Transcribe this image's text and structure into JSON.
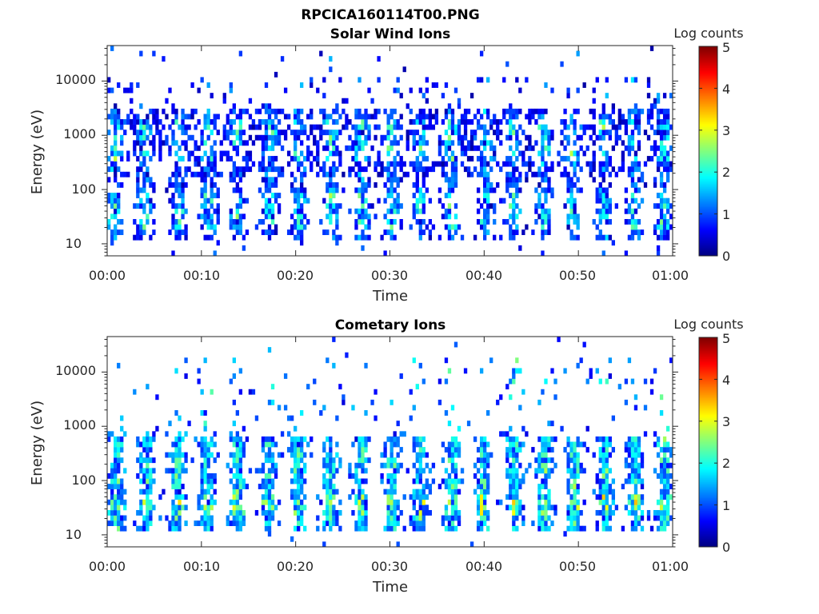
{
  "figure": {
    "title": "RPCICA160114T00.PNG"
  },
  "colorbar": {
    "label": "Log counts",
    "ticks": [
      "0",
      "1",
      "2",
      "3",
      "4",
      "5"
    ],
    "range": [
      0,
      5
    ],
    "colormap": "jet"
  },
  "chart_data": [
    {
      "type": "heatmap",
      "title": "Solar Wind Ions",
      "xlabel": "Time",
      "ylabel": "Energy (eV)",
      "xticks": [
        "00:00",
        "00:10",
        "00:20",
        "00:30",
        "00:40",
        "00:50",
        "01:00"
      ],
      "xlim_minutes": [
        0,
        60
      ],
      "yticks": [
        "10",
        "100",
        "1000",
        "10000"
      ],
      "ylim": [
        6,
        45000
      ],
      "yscale": "log",
      "zlabel": "Log counts",
      "zlim": [
        0,
        5
      ],
      "grid": false,
      "bursts_minutes": [
        0.8,
        3.9,
        7.6,
        10.8,
        13.8,
        17.3,
        20.4,
        23.8,
        27.0,
        30.2,
        33.3,
        36.5,
        40.1,
        43.1,
        46.3,
        49.4,
        52.7,
        56.0,
        59.0
      ],
      "band_energies_eV": [
        35,
        80,
        300,
        1000
      ],
      "peak_log_counts": 2.8
    },
    {
      "type": "heatmap",
      "title": "Cometary Ions",
      "xlabel": "Time",
      "ylabel": "Energy (eV)",
      "xticks": [
        "00:00",
        "00:10",
        "00:20",
        "00:30",
        "00:40",
        "00:50",
        "01:00"
      ],
      "xlim_minutes": [
        0,
        60
      ],
      "yticks": [
        "10",
        "100",
        "1000",
        "10000"
      ],
      "ylim": [
        6,
        45000
      ],
      "yscale": "log",
      "zlabel": "Log counts",
      "zlim": [
        0,
        5
      ],
      "grid": false,
      "bursts_minutes": [
        1.0,
        4.2,
        7.5,
        10.6,
        13.8,
        17.1,
        20.3,
        23.7,
        26.9,
        30.2,
        33.2,
        36.6,
        39.9,
        43.2,
        46.4,
        49.6,
        52.8,
        56.0,
        59.1
      ],
      "band_energies_eV": [
        15,
        40,
        100,
        400
      ],
      "peak_log_counts": 3.0
    }
  ]
}
